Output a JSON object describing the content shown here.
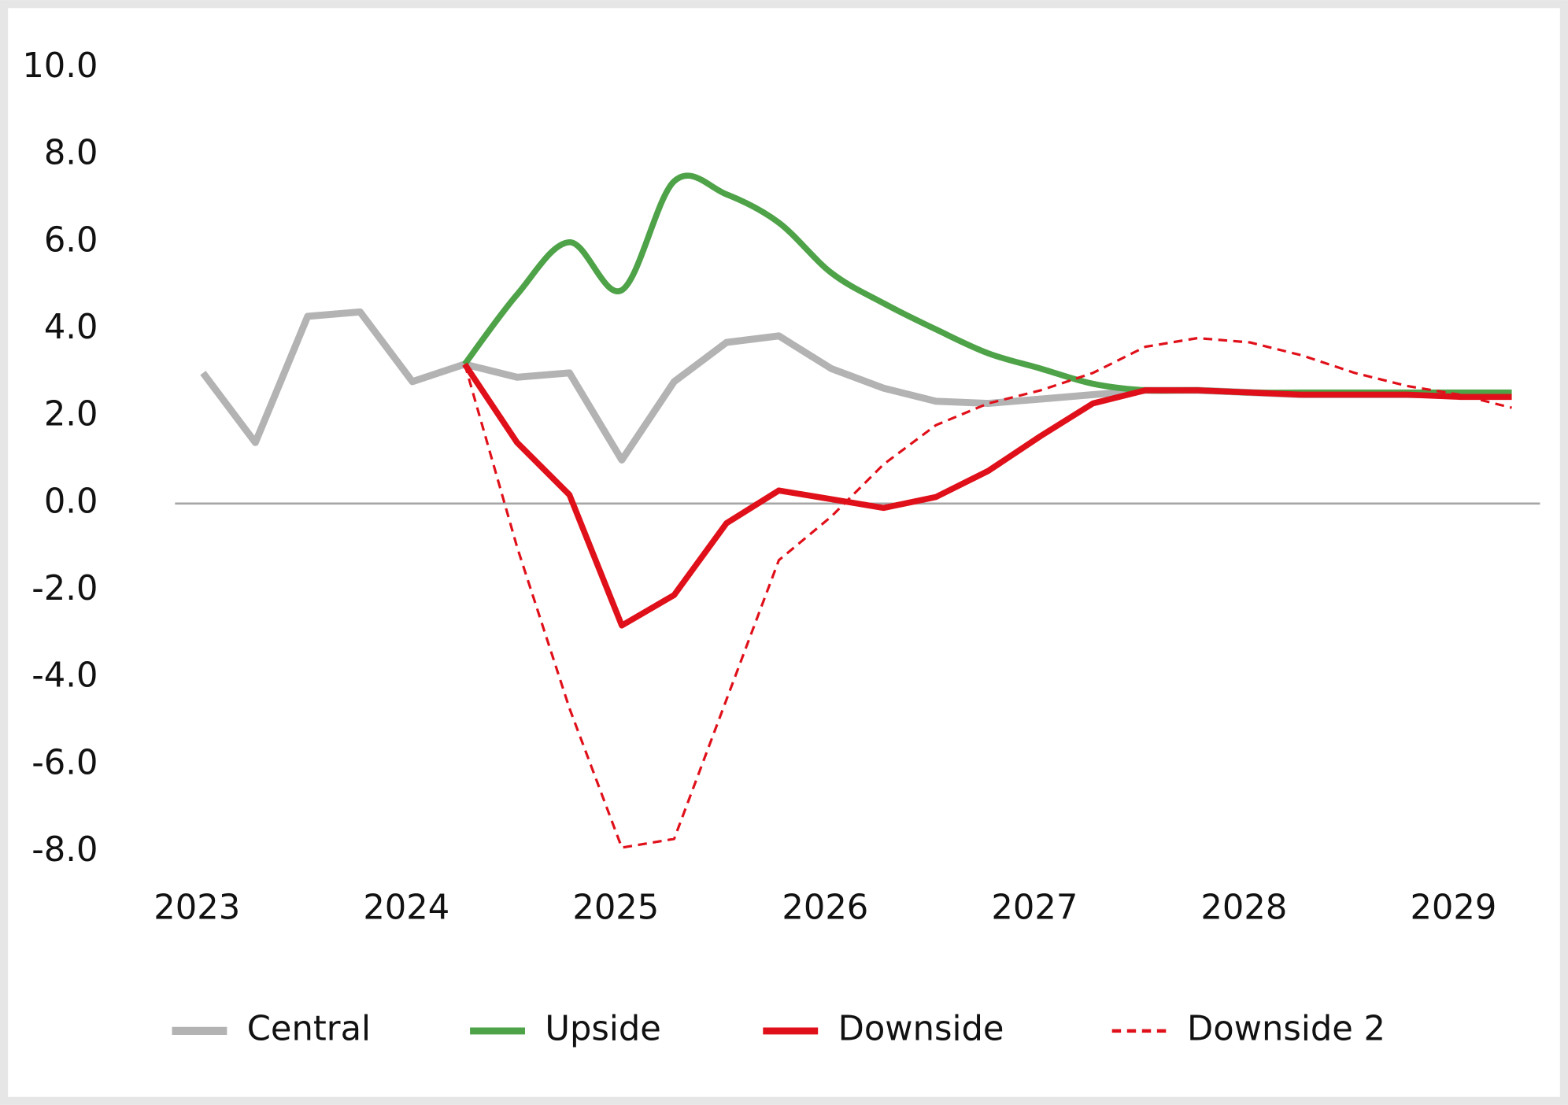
{
  "chart_data": {
    "type": "line",
    "categories": [
      "2023",
      null,
      null,
      null,
      "2024",
      null,
      null,
      null,
      "2025",
      null,
      null,
      null,
      "2026",
      null,
      null,
      null,
      "2027",
      null,
      null,
      null,
      "2028",
      null,
      null,
      null,
      "2029",
      null
    ],
    "series": [
      {
        "name": "Central",
        "color": "#b3b3b3",
        "values": [
          3.0,
          1.4,
          4.3,
          4.4,
          2.8,
          3.2,
          2.9,
          3.0,
          1.0,
          2.8,
          3.7,
          3.85,
          3.1,
          2.65,
          2.35,
          2.3,
          2.4,
          2.5,
          2.6,
          2.6,
          2.55,
          2.5,
          2.5,
          2.5,
          2.5,
          2.5
        ]
      },
      {
        "name": "Upside",
        "color": "#4ea248",
        "smooth": true,
        "values": [
          null,
          null,
          null,
          null,
          null,
          3.2,
          4.8,
          6.0,
          4.9,
          7.4,
          7.1,
          6.45,
          5.3,
          4.6,
          4.0,
          3.45,
          3.1,
          2.75,
          2.6,
          2.6,
          2.55,
          2.55,
          2.55,
          2.55,
          2.55,
          2.55
        ]
      },
      {
        "name": "Downside",
        "color": "#e0101a",
        "values": [
          null,
          null,
          null,
          null,
          null,
          3.2,
          1.4,
          0.2,
          -2.8,
          -2.1,
          -0.45,
          0.3,
          0.1,
          -0.1,
          0.15,
          0.75,
          1.55,
          2.3,
          2.6,
          2.6,
          2.55,
          2.5,
          2.5,
          2.5,
          2.45,
          2.45
        ]
      },
      {
        "name": "Downside 2",
        "color": "#e0101a",
        "line_style": "dashed",
        "values": [
          null,
          null,
          null,
          null,
          null,
          3.2,
          -1.0,
          -4.7,
          -7.9,
          -7.7,
          -4.5,
          -1.3,
          -0.3,
          0.9,
          1.8,
          2.3,
          2.6,
          3.0,
          3.6,
          3.8,
          3.7,
          3.4,
          3.0,
          2.7,
          2.5,
          2.2
        ]
      }
    ],
    "ylim": [
      -8,
      10
    ],
    "yticks": [
      {
        "value": 10,
        "label": "10.0"
      },
      {
        "value": 8,
        "label": "8.0"
      },
      {
        "value": 6,
        "label": "6.0"
      },
      {
        "value": 4,
        "label": "4.0"
      },
      {
        "value": 2,
        "label": "2.0"
      },
      {
        "value": 0,
        "label": "0.0"
      },
      {
        "value": -2,
        "label": "-2.0"
      },
      {
        "value": -4,
        "label": "-4.0"
      },
      {
        "value": -6,
        "label": "-6.0"
      },
      {
        "value": -8,
        "label": "-8.0"
      }
    ],
    "zero_line": true,
    "grid": false,
    "legend": "bottom"
  }
}
